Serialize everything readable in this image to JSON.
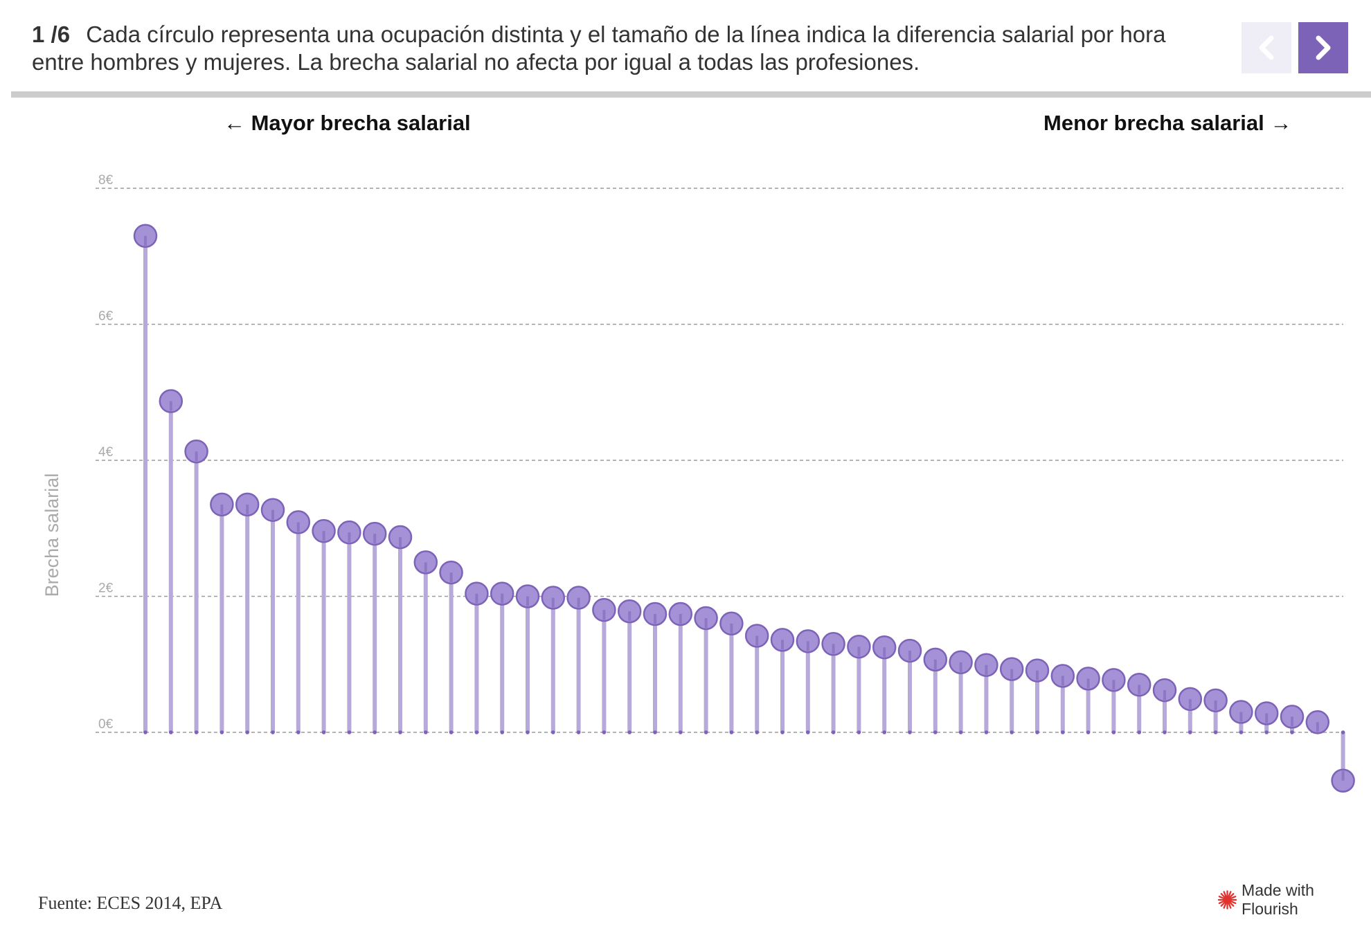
{
  "header": {
    "step": "1 /6",
    "text": "Cada círculo representa una ocupación distinta y el tamaño de la línea indica la diferencia salarial por hora entre hombres y mujeres. La brecha salarial no afecta por igual a todas las profesiones."
  },
  "annotations": {
    "left": "← Mayor brecha salarial",
    "right": "Menor brecha salarial →"
  },
  "footer": {
    "source": "Fuente: ECES 2014, EPA",
    "credit": "Made with Flourish"
  },
  "colors": {
    "accent": "#7d63b8",
    "dot_fill": "#a592d6",
    "stem": "#b7a9da",
    "grid": "#9a9a9a",
    "axis_text": "#aaaaaa"
  },
  "chart_data": {
    "type": "lollipop",
    "ylabel": "Brecha salarial",
    "y_ticks": [
      "8€",
      "6€",
      "4€",
      "2€",
      "0€"
    ],
    "ylim": [
      -1,
      8
    ],
    "grid": true,
    "series": [
      {
        "values": [
          7.3,
          4.87,
          4.13,
          3.35,
          3.35,
          3.27,
          3.09,
          2.96,
          2.94,
          2.92,
          2.87,
          2.5,
          2.35,
          2.04,
          2.04,
          2.0,
          1.98,
          1.98,
          1.8,
          1.78,
          1.74,
          1.74,
          1.68,
          1.6,
          1.42,
          1.36,
          1.34,
          1.3,
          1.26,
          1.25,
          1.2,
          1.07,
          1.03,
          0.99,
          0.93,
          0.91,
          0.83,
          0.79,
          0.77,
          0.7,
          0.62,
          0.49,
          0.47,
          0.3,
          0.28,
          0.23,
          0.15,
          -0.71
        ]
      }
    ]
  }
}
